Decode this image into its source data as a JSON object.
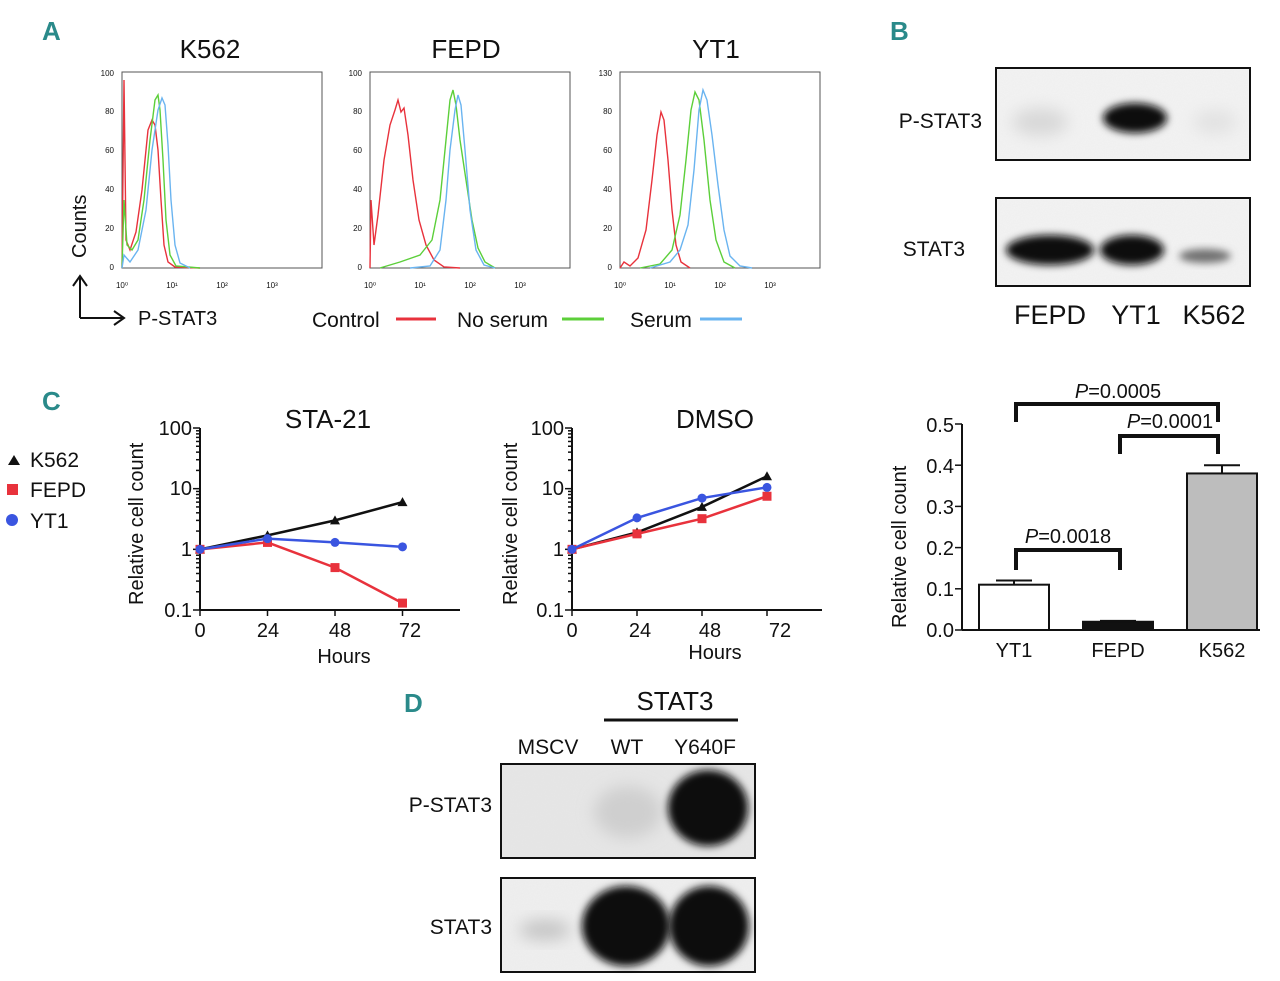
{
  "panels": {
    "A": {
      "letter": "A",
      "ylabel": "Counts",
      "xlabel": "P-STAT3",
      "legend": [
        {
          "label": "Control",
          "color": "#e8323c"
        },
        {
          "label": "No serum",
          "color": "#5ccf3a"
        },
        {
          "label": "Serum",
          "color": "#6ab4f0"
        }
      ],
      "histograms": [
        {
          "title": "K562",
          "ymax": 100,
          "yticks": [
            "0",
            "20",
            "40",
            "60",
            "80",
            "100"
          ],
          "xticks": [
            "10⁰",
            "10¹",
            "10²",
            "10³"
          ]
        },
        {
          "title": "FEPD",
          "ymax": 100,
          "yticks": [
            "0",
            "20",
            "40",
            "60",
            "80",
            "100"
          ],
          "xticks": [
            "10⁰",
            "10¹",
            "10²",
            "10³"
          ]
        },
        {
          "title": "YT1",
          "ymax": 130,
          "yticks": [
            "0",
            "20",
            "40",
            "60",
            "80",
            "100",
            "130"
          ],
          "xticks": [
            "10⁰",
            "10¹",
            "10²",
            "10³"
          ]
        }
      ]
    },
    "B": {
      "letter": "B",
      "blot_rows": [
        "P-STAT3",
        "STAT3"
      ],
      "lanes": [
        "FEPD",
        "YT1",
        "K562"
      ]
    },
    "C": {
      "letter": "C",
      "legend": [
        {
          "label": "K562",
          "color": "#111111",
          "marker": "triangle"
        },
        {
          "label": "FEPD",
          "color": "#e8323c",
          "marker": "square"
        },
        {
          "label": "YT1",
          "color": "#3a55e0",
          "marker": "circle"
        }
      ],
      "xticks": [
        "0",
        "24",
        "48",
        "72"
      ],
      "yticks": [
        "0.1",
        "1",
        "10",
        "100"
      ]
    },
    "D": {
      "letter": "D",
      "group_label": "STAT3",
      "lanes": [
        "MSCV",
        "WT",
        "Y640F"
      ],
      "blot_rows": [
        "P-STAT3",
        "STAT3"
      ]
    }
  },
  "chart_data": [
    {
      "type": "line",
      "title": "STA-21",
      "xlabel": "Hours",
      "ylabel": "Relative cell count",
      "yscale": "log",
      "ylim": [
        0.1,
        100
      ],
      "xlim": [
        0,
        96
      ],
      "x": [
        0,
        24,
        48,
        72
      ],
      "series": [
        {
          "name": "K562",
          "values": [
            1,
            1.7,
            3.0,
            6.0
          ],
          "color": "#111111",
          "marker": "triangle"
        },
        {
          "name": "FEPD",
          "values": [
            1,
            1.3,
            0.5,
            0.13
          ],
          "color": "#e8323c",
          "marker": "square"
        },
        {
          "name": "YT1",
          "values": [
            1,
            1.5,
            1.3,
            1.1
          ],
          "color": "#3a55e0",
          "marker": "circle"
        }
      ]
    },
    {
      "type": "line",
      "title": "DMSO",
      "xlabel": "Hours",
      "ylabel": "Relative cell count",
      "yscale": "log",
      "ylim": [
        0.1,
        100
      ],
      "xlim": [
        0,
        96
      ],
      "x": [
        0,
        24,
        48,
        72
      ],
      "series": [
        {
          "name": "K562",
          "values": [
            1,
            1.9,
            5.0,
            16
          ],
          "color": "#111111",
          "marker": "triangle"
        },
        {
          "name": "FEPD",
          "values": [
            1,
            1.8,
            3.2,
            7.5
          ],
          "color": "#e8323c",
          "marker": "square"
        },
        {
          "name": "YT1",
          "values": [
            1,
            3.3,
            7.0,
            10.5
          ],
          "color": "#3a55e0",
          "marker": "circle"
        }
      ]
    },
    {
      "type": "bar",
      "title": "",
      "xlabel": "",
      "ylabel": "Relative cell count",
      "categories": [
        "YT1",
        "FEPD",
        "K562"
      ],
      "values": [
        0.11,
        0.02,
        0.38
      ],
      "errors": [
        0.01,
        0.002,
        0.02
      ],
      "colors": [
        "#ffffff",
        "#111111",
        "#bdbdbd"
      ],
      "ylim": [
        0,
        0.5
      ],
      "yticks": [
        "0.0",
        "0.1",
        "0.2",
        "0.3",
        "0.4",
        "0.5"
      ],
      "annotations": [
        {
          "pair": [
            "YT1",
            "FEPD"
          ],
          "prefix": "P",
          "text": "=0.0018"
        },
        {
          "pair": [
            "FEPD",
            "K562"
          ],
          "prefix": "P",
          "text": "=0.0001"
        },
        {
          "pair": [
            "YT1",
            "K562"
          ],
          "prefix": "P",
          "text": "=0.0005"
        }
      ]
    }
  ]
}
